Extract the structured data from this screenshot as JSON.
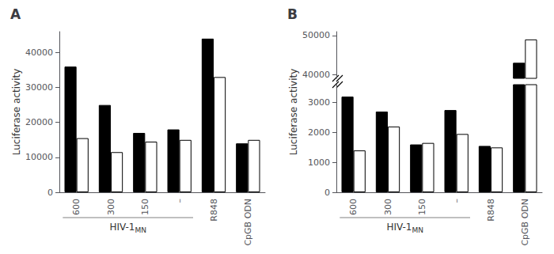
{
  "chart_data": [
    {
      "type": "bar",
      "title": "A",
      "ylabel": "Luciferase activity",
      "categories": [
        "600",
        "300",
        "150",
        "–",
        "R848",
        "CpGB ODN"
      ],
      "series": [
        {
          "color": "#000000",
          "values": [
            36000,
            25000,
            17000,
            18000,
            44000,
            14000
          ]
        },
        {
          "color": "#ffffff",
          "values": [
            15500,
            11500,
            14500,
            15000,
            33000,
            15000
          ]
        }
      ],
      "ylim": [
        0,
        46000
      ],
      "yticks": [
        0,
        10000,
        20000,
        30000,
        40000
      ],
      "grid": false,
      "annotations": [
        "HIV-1",
        "MN"
      ]
    },
    {
      "type": "bar",
      "title": "B",
      "ylabel": "Luciferase activity",
      "categories": [
        "600",
        "300",
        "150",
        "–",
        "R848",
        "CpGB ODN"
      ],
      "series": [
        {
          "color": "#000000",
          "values": [
            3200,
            2700,
            1600,
            2750,
            1550,
            43000
          ]
        },
        {
          "color": "#ffffff",
          "values": [
            1400,
            2200,
            1650,
            1950,
            1500,
            49000
          ]
        }
      ],
      "ylim": [
        [
          0,
          3600
        ],
        [
          39000,
          51000
        ]
      ],
      "yticks": [
        [
          0,
          1000,
          2000,
          3000
        ],
        [
          40000,
          50000
        ]
      ],
      "grid": false,
      "annotations": [
        "HIV-1",
        "MN"
      ]
    }
  ]
}
